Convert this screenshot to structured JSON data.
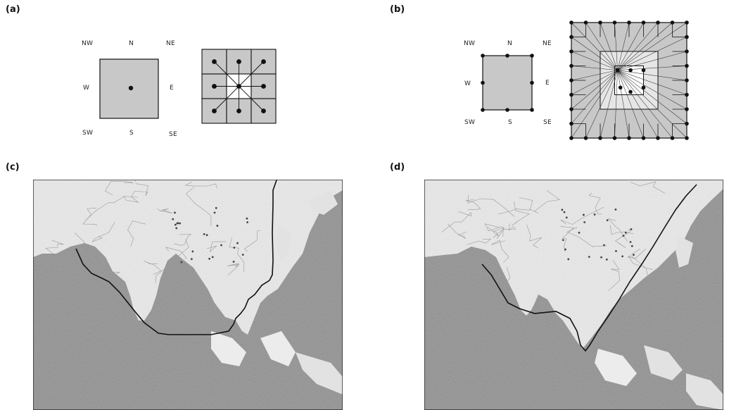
{
  "panels": {
    "a": {
      "label": "(a)"
    },
    "b": {
      "label": "(b)"
    },
    "c": {
      "label": "(c)"
    },
    "d": {
      "label": "(d)"
    }
  },
  "directions": [
    "NW",
    "N",
    "NE",
    "W",
    "E",
    "SW",
    "S",
    "SE"
  ],
  "colors": {
    "cell_fill": "#c8c8c8",
    "line": "#111111",
    "ocean": "#8f8f8f",
    "land": "#ececec",
    "path": "#111111"
  }
}
